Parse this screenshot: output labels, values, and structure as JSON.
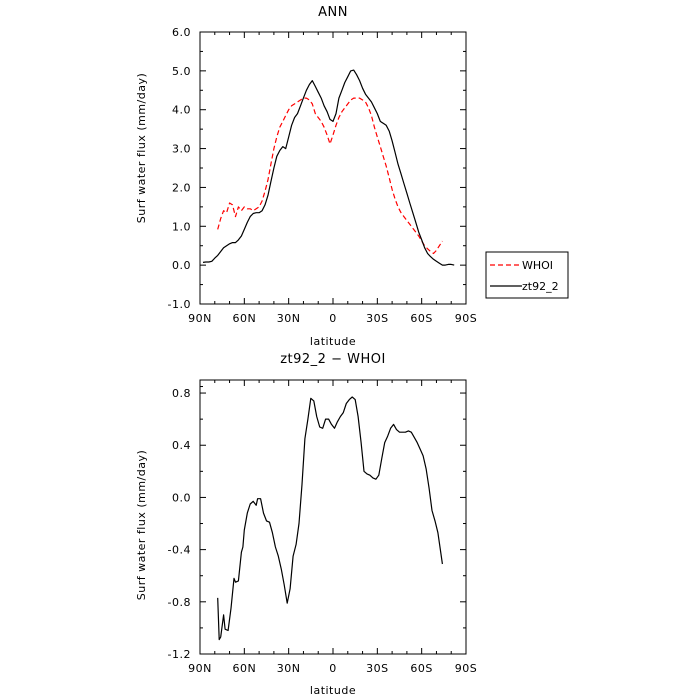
{
  "chart_data": [
    {
      "type": "line",
      "title": "ANN",
      "xlabel": "latitude",
      "ylabel": "Surf water flux (mm/day)",
      "x_ticks": [
        {
          "value": 90,
          "label": "90N"
        },
        {
          "value": 60,
          "label": "60N"
        },
        {
          "value": 30,
          "label": "30N"
        },
        {
          "value": 0,
          "label": "0"
        },
        {
          "value": -30,
          "label": "30S"
        },
        {
          "value": -60,
          "label": "60S"
        },
        {
          "value": -90,
          "label": "90S"
        }
      ],
      "y_ticks": [
        "-1.0",
        "0.0",
        "1.0",
        "2.0",
        "3.0",
        "4.0",
        "5.0",
        "6.0"
      ],
      "xlim": [
        90,
        -90
      ],
      "ylim": [
        -1.0,
        6.0
      ],
      "legend_position": "right, outside",
      "series": [
        {
          "name": "WHOI",
          "color": "#ff0000",
          "dash": "dashed",
          "points": [
            [
              78,
              0.92
            ],
            [
              76,
              1.2
            ],
            [
              74,
              1.4
            ],
            [
              72,
              1.35
            ],
            [
              70,
              1.6
            ],
            [
              68,
              1.55
            ],
            [
              66,
              1.25
            ],
            [
              64,
              1.5
            ],
            [
              62,
              1.4
            ],
            [
              60,
              1.5
            ],
            [
              58,
              1.45
            ],
            [
              56,
              1.45
            ],
            [
              54,
              1.4
            ],
            [
              52,
              1.45
            ],
            [
              50,
              1.5
            ],
            [
              48,
              1.65
            ],
            [
              46,
              1.9
            ],
            [
              44,
              2.2
            ],
            [
              42,
              2.6
            ],
            [
              40,
              3.0
            ],
            [
              38,
              3.3
            ],
            [
              36,
              3.55
            ],
            [
              34,
              3.7
            ],
            [
              32,
              3.85
            ],
            [
              30,
              4.0
            ],
            [
              28,
              4.1
            ],
            [
              26,
              4.15
            ],
            [
              24,
              4.2
            ],
            [
              22,
              4.25
            ],
            [
              20,
              4.3
            ],
            [
              18,
              4.3
            ],
            [
              16,
              4.25
            ],
            [
              14,
              4.15
            ],
            [
              12,
              3.9
            ],
            [
              10,
              3.8
            ],
            [
              8,
              3.7
            ],
            [
              6,
              3.55
            ],
            [
              4,
              3.35
            ],
            [
              2,
              3.12
            ],
            [
              0,
              3.35
            ],
            [
              -2,
              3.6
            ],
            [
              -4,
              3.8
            ],
            [
              -6,
              3.95
            ],
            [
              -8,
              4.05
            ],
            [
              -10,
              4.15
            ],
            [
              -12,
              4.25
            ],
            [
              -14,
              4.3
            ],
            [
              -16,
              4.3
            ],
            [
              -18,
              4.3
            ],
            [
              -20,
              4.25
            ],
            [
              -22,
              4.2
            ],
            [
              -24,
              4.05
            ],
            [
              -26,
              3.85
            ],
            [
              -28,
              3.55
            ],
            [
              -30,
              3.3
            ],
            [
              -32,
              3.05
            ],
            [
              -34,
              2.8
            ],
            [
              -36,
              2.55
            ],
            [
              -38,
              2.25
            ],
            [
              -40,
              1.95
            ],
            [
              -42,
              1.7
            ],
            [
              -44,
              1.5
            ],
            [
              -46,
              1.35
            ],
            [
              -48,
              1.25
            ],
            [
              -50,
              1.15
            ],
            [
              -52,
              1.05
            ],
            [
              -54,
              0.95
            ],
            [
              -56,
              0.85
            ],
            [
              -58,
              0.75
            ],
            [
              -60,
              0.62
            ],
            [
              -62,
              0.5
            ],
            [
              -64,
              0.42
            ],
            [
              -66,
              0.35
            ],
            [
              -68,
              0.3
            ],
            [
              -70,
              0.38
            ],
            [
              -72,
              0.5
            ],
            [
              -74,
              0.62
            ]
          ]
        },
        {
          "name": "zt92_2",
          "color": "#000000",
          "dash": "solid",
          "points": [
            [
              88,
              0.07
            ],
            [
              86,
              0.08
            ],
            [
              84,
              0.08
            ],
            [
              82,
              0.1
            ],
            [
              80,
              0.18
            ],
            [
              78,
              0.25
            ],
            [
              76,
              0.35
            ],
            [
              74,
              0.45
            ],
            [
              72,
              0.5
            ],
            [
              70,
              0.55
            ],
            [
              68,
              0.58
            ],
            [
              66,
              0.58
            ],
            [
              64,
              0.65
            ],
            [
              62,
              0.75
            ],
            [
              60,
              0.92
            ],
            [
              58,
              1.1
            ],
            [
              56,
              1.25
            ],
            [
              54,
              1.33
            ],
            [
              52,
              1.35
            ],
            [
              50,
              1.35
            ],
            [
              48,
              1.4
            ],
            [
              46,
              1.55
            ],
            [
              44,
              1.8
            ],
            [
              42,
              2.15
            ],
            [
              40,
              2.5
            ],
            [
              38,
              2.8
            ],
            [
              36,
              2.95
            ],
            [
              34,
              3.05
            ],
            [
              32,
              3.0
            ],
            [
              30,
              3.3
            ],
            [
              28,
              3.6
            ],
            [
              26,
              3.8
            ],
            [
              24,
              3.9
            ],
            [
              22,
              4.1
            ],
            [
              20,
              4.3
            ],
            [
              18,
              4.5
            ],
            [
              16,
              4.65
            ],
            [
              14,
              4.75
            ],
            [
              12,
              4.6
            ],
            [
              10,
              4.45
            ],
            [
              8,
              4.3
            ],
            [
              6,
              4.1
            ],
            [
              4,
              3.95
            ],
            [
              2,
              3.75
            ],
            [
              0,
              3.7
            ],
            [
              -2,
              3.9
            ],
            [
              -4,
              4.3
            ],
            [
              -6,
              4.5
            ],
            [
              -8,
              4.7
            ],
            [
              -10,
              4.85
            ],
            [
              -12,
              5.0
            ],
            [
              -14,
              5.02
            ],
            [
              -16,
              4.9
            ],
            [
              -18,
              4.75
            ],
            [
              -20,
              4.55
            ],
            [
              -22,
              4.4
            ],
            [
              -24,
              4.3
            ],
            [
              -26,
              4.2
            ],
            [
              -28,
              4.05
            ],
            [
              -30,
              3.9
            ],
            [
              -32,
              3.7
            ],
            [
              -34,
              3.65
            ],
            [
              -36,
              3.6
            ],
            [
              -38,
              3.45
            ],
            [
              -40,
              3.2
            ],
            [
              -42,
              2.9
            ],
            [
              -44,
              2.6
            ],
            [
              -46,
              2.35
            ],
            [
              -48,
              2.1
            ],
            [
              -50,
              1.85
            ],
            [
              -52,
              1.6
            ],
            [
              -54,
              1.35
            ],
            [
              -56,
              1.1
            ],
            [
              -58,
              0.85
            ],
            [
              -60,
              0.65
            ],
            [
              -62,
              0.45
            ],
            [
              -64,
              0.3
            ],
            [
              -66,
              0.22
            ],
            [
              -68,
              0.15
            ],
            [
              -70,
              0.1
            ],
            [
              -72,
              0.05
            ],
            [
              -74,
              0.0
            ],
            [
              -76,
              0.0
            ],
            [
              -78,
              0.02
            ],
            [
              -80,
              0.02
            ],
            [
              -82,
              0.0
            ]
          ]
        }
      ]
    },
    {
      "type": "line",
      "title": "zt92_2 − WHOI",
      "xlabel": "latitude",
      "ylabel": "Surf water flux (mm/day)",
      "x_ticks": [
        {
          "value": 90,
          "label": "90N"
        },
        {
          "value": 60,
          "label": "60N"
        },
        {
          "value": 30,
          "label": "30N"
        },
        {
          "value": 0,
          "label": "0"
        },
        {
          "value": -30,
          "label": "30S"
        },
        {
          "value": -60,
          "label": "60S"
        },
        {
          "value": -90,
          "label": "90S"
        }
      ],
      "y_ticks": [
        "-1.2",
        "-0.8",
        "-0.4",
        "0.0",
        "0.4",
        "0.8"
      ],
      "xlim": [
        90,
        -90
      ],
      "ylim": [
        -1.2,
        0.9
      ],
      "series": [
        {
          "color": "#000000",
          "dash": "solid",
          "points": [
            [
              78,
              -0.77
            ],
            [
              77,
              -1.09
            ],
            [
              76,
              -1.07
            ],
            [
              74,
              -0.9
            ],
            [
              73,
              -1.01
            ],
            [
              71,
              -1.02
            ],
            [
              69,
              -0.85
            ],
            [
              67,
              -0.62
            ],
            [
              66,
              -0.65
            ],
            [
              64,
              -0.64
            ],
            [
              62,
              -0.42
            ],
            [
              61,
              -0.38
            ],
            [
              60,
              -0.25
            ],
            [
              58,
              -0.12
            ],
            [
              56,
              -0.05
            ],
            [
              54,
              -0.03
            ],
            [
              52,
              -0.06
            ],
            [
              51,
              -0.01
            ],
            [
              49,
              -0.01
            ],
            [
              47,
              -0.12
            ],
            [
              45,
              -0.18
            ],
            [
              43,
              -0.19
            ],
            [
              41,
              -0.27
            ],
            [
              39,
              -0.38
            ],
            [
              37,
              -0.45
            ],
            [
              35,
              -0.55
            ],
            [
              33,
              -0.67
            ],
            [
              31,
              -0.81
            ],
            [
              29,
              -0.7
            ],
            [
              27,
              -0.45
            ],
            [
              25,
              -0.36
            ],
            [
              23,
              -0.2
            ],
            [
              21,
              0.1
            ],
            [
              19,
              0.45
            ],
            [
              17,
              0.6
            ],
            [
              15,
              0.76
            ],
            [
              13,
              0.74
            ],
            [
              11,
              0.62
            ],
            [
              9,
              0.54
            ],
            [
              7,
              0.53
            ],
            [
              5,
              0.6
            ],
            [
              3,
              0.6
            ],
            [
              1,
              0.56
            ],
            [
              -1,
              0.53
            ],
            [
              -3,
              0.58
            ],
            [
              -5,
              0.62
            ],
            [
              -7,
              0.65
            ],
            [
              -9,
              0.72
            ],
            [
              -11,
              0.75
            ],
            [
              -13,
              0.77
            ],
            [
              -15,
              0.75
            ],
            [
              -17,
              0.62
            ],
            [
              -19,
              0.42
            ],
            [
              -21,
              0.2
            ],
            [
              -23,
              0.18
            ],
            [
              -25,
              0.17
            ],
            [
              -27,
              0.15
            ],
            [
              -29,
              0.14
            ],
            [
              -31,
              0.17
            ],
            [
              -33,
              0.3
            ],
            [
              -35,
              0.42
            ],
            [
              -37,
              0.47
            ],
            [
              -39,
              0.53
            ],
            [
              -41,
              0.56
            ],
            [
              -43,
              0.52
            ],
            [
              -45,
              0.5
            ],
            [
              -47,
              0.5
            ],
            [
              -49,
              0.5
            ],
            [
              -51,
              0.51
            ],
            [
              -53,
              0.5
            ],
            [
              -55,
              0.46
            ],
            [
              -57,
              0.42
            ],
            [
              -59,
              0.37
            ],
            [
              -61,
              0.32
            ],
            [
              -63,
              0.22
            ],
            [
              -65,
              0.07
            ],
            [
              -67,
              -0.1
            ],
            [
              -69,
              -0.18
            ],
            [
              -71,
              -0.27
            ],
            [
              -73,
              -0.43
            ],
            [
              -74,
              -0.51
            ]
          ]
        }
      ]
    }
  ],
  "legend": [
    {
      "label": "WHOI",
      "color": "#ff0000",
      "dash": "dashed"
    },
    {
      "label": "zt92_2",
      "color": "#000000",
      "dash": "solid"
    }
  ]
}
